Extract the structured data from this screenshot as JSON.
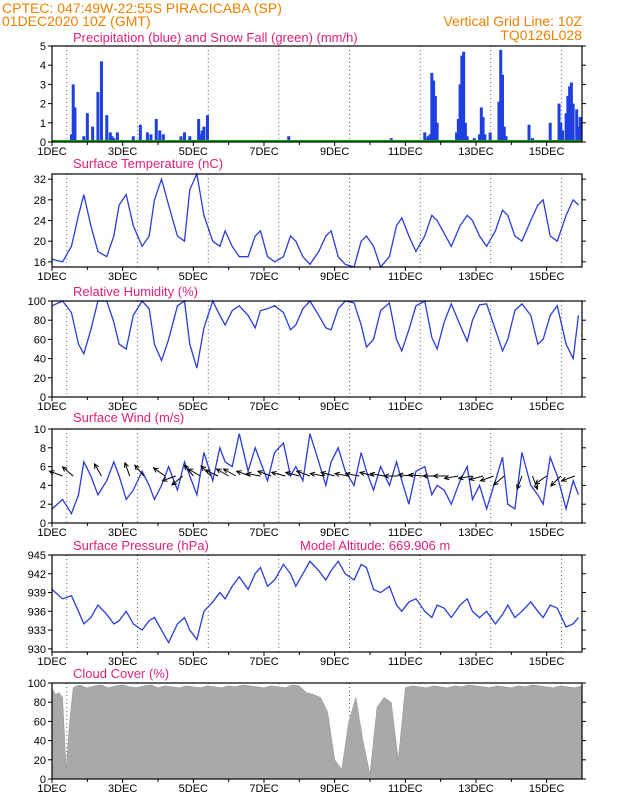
{
  "header": {
    "line1": "CPTEC:   047:49W-22:55S   PIRACICABA (SP)",
    "line2": "01DEC2020 10Z (GMT)",
    "grid_note": "Vertical Grid Line: 10Z",
    "code": "TQ0126L028"
  },
  "colors": {
    "header": "#f08000",
    "title": "#e0207a",
    "precip": "#1f3fe0",
    "snow": "#00a000",
    "line": "#2a3cd8",
    "cloud": "#a9a9a9"
  },
  "x_axis": {
    "labels": [
      "1DEC",
      "3DEC",
      "5DEC",
      "7DEC",
      "9DEC",
      "11DEC",
      "13DEC",
      "15DEC"
    ],
    "label_days": [
      0,
      2,
      4,
      6,
      8,
      10,
      12,
      14
    ],
    "xlim_days": [
      0,
      15
    ]
  },
  "chart_data": [
    {
      "type": "bar",
      "title": "Precipitation (blue) and Snow Fall (green) (mm/h)",
      "ylim": [
        0,
        5
      ],
      "yticks": [
        0,
        1,
        2,
        3,
        4,
        5
      ],
      "series": [
        {
          "name": "Precipitation",
          "x": [
            0.55,
            0.6,
            0.65,
            0.9,
            1.0,
            1.15,
            1.3,
            1.4,
            1.55,
            1.65,
            1.7,
            1.75,
            1.85,
            2.3,
            2.5,
            2.7,
            2.8,
            2.95,
            3.05,
            3.15,
            3.65,
            3.75,
            3.9,
            4.15,
            4.2,
            4.25,
            4.3,
            4.4,
            6.7,
            7.5,
            7.55,
            9.6,
            9.7,
            10.55,
            10.6,
            10.65,
            10.7,
            10.75,
            10.8,
            10.85,
            10.9,
            11.45,
            11.5,
            11.55,
            11.6,
            11.65,
            11.7,
            11.75,
            11.95,
            12.1,
            12.15,
            12.2,
            12.25,
            12.4,
            12.65,
            12.7,
            12.75,
            12.8,
            12.85,
            13.5,
            13.6,
            14.1,
            14.35,
            14.4,
            14.45,
            14.55,
            14.6,
            14.65,
            14.7,
            14.75,
            14.85,
            14.9,
            14.95
          ],
          "values": [
            0.4,
            3.0,
            1.8,
            0.3,
            1.5,
            0.8,
            2.6,
            4.2,
            1.4,
            0.5,
            0.3,
            0.2,
            0.5,
            0.3,
            0.9,
            0.5,
            0.4,
            1.2,
            0.6,
            0.4,
            0.3,
            0.5,
            0.3,
            1.2,
            0.4,
            0.6,
            0.8,
            1.4,
            0.3,
            0.1,
            0.1,
            0.2,
            0.1,
            0.5,
            0.2,
            0.3,
            0.4,
            3.6,
            3.2,
            2.4,
            1.0,
            0.5,
            1.2,
            3.0,
            4.5,
            4.7,
            1.0,
            0.3,
            0.2,
            0.4,
            1.8,
            1.3,
            0.4,
            0.5,
            2.1,
            4.8,
            3.5,
            0.8,
            0.3,
            0.9,
            0.2,
            1.0,
            2.0,
            1.0,
            0.6,
            1.5,
            2.4,
            2.9,
            3.1,
            2.0,
            1.7,
            0.8,
            1.3
          ]
        },
        {
          "name": "Snow Fall",
          "x": [
            0,
            15
          ],
          "values": [
            0,
            0
          ]
        }
      ]
    },
    {
      "type": "line",
      "title": "Surface Temperature (nC)",
      "ylim": [
        15,
        33
      ],
      "yticks": [
        16,
        20,
        24,
        28,
        32
      ],
      "series": [
        {
          "name": "Temperature",
          "x": [
            0,
            0.3,
            0.55,
            0.75,
            0.9,
            1.1,
            1.3,
            1.55,
            1.75,
            1.9,
            2.1,
            2.3,
            2.55,
            2.75,
            2.9,
            3.1,
            3.3,
            3.55,
            3.75,
            3.9,
            4.1,
            4.3,
            4.55,
            4.75,
            4.9,
            5.1,
            5.3,
            5.55,
            5.75,
            5.9,
            6.1,
            6.3,
            6.55,
            6.75,
            6.9,
            7.1,
            7.3,
            7.55,
            7.75,
            7.9,
            8.1,
            8.3,
            8.55,
            8.75,
            8.9,
            9.1,
            9.3,
            9.55,
            9.75,
            9.9,
            10.1,
            10.3,
            10.55,
            10.75,
            10.9,
            11.1,
            11.3,
            11.55,
            11.75,
            11.9,
            12.1,
            12.3,
            12.55,
            12.75,
            12.9,
            13.1,
            13.3,
            13.55,
            13.75,
            13.9,
            14.1,
            14.3,
            14.55,
            14.75,
            14.9
          ],
          "values": [
            16.5,
            16,
            19,
            25,
            29,
            23,
            18,
            17,
            21,
            27,
            29,
            23,
            19,
            21,
            28,
            32,
            27,
            21,
            20,
            30,
            33,
            25,
            20,
            19,
            22,
            19,
            17,
            17,
            21,
            22,
            17,
            16,
            17,
            21,
            20,
            17,
            15.5,
            18,
            21,
            22,
            17,
            15.5,
            15,
            20,
            21,
            19,
            15,
            17,
            23,
            24.5,
            21,
            18,
            21,
            25,
            24,
            21.5,
            19,
            23,
            25,
            24,
            21,
            19,
            22,
            26,
            25,
            21,
            20,
            24,
            27,
            28,
            21,
            20,
            25,
            28,
            27
          ]
        }
      ]
    },
    {
      "type": "line",
      "title": "Relative Humidity (%)",
      "ylim": [
        0,
        100
      ],
      "yticks": [
        0,
        20,
        40,
        60,
        80,
        100
      ],
      "series": [
        {
          "name": "Humidity",
          "x": [
            0,
            0.3,
            0.55,
            0.75,
            0.9,
            1.1,
            1.3,
            1.55,
            1.75,
            1.9,
            2.1,
            2.3,
            2.55,
            2.75,
            2.9,
            3.1,
            3.3,
            3.55,
            3.75,
            3.9,
            4.1,
            4.3,
            4.55,
            4.75,
            4.9,
            5.1,
            5.3,
            5.55,
            5.75,
            5.9,
            6.1,
            6.3,
            6.55,
            6.75,
            6.9,
            7.1,
            7.3,
            7.55,
            7.75,
            7.9,
            8.1,
            8.3,
            8.55,
            8.75,
            8.9,
            9.1,
            9.3,
            9.55,
            9.75,
            9.9,
            10.1,
            10.3,
            10.55,
            10.75,
            10.9,
            11.1,
            11.3,
            11.55,
            11.75,
            11.9,
            12.1,
            12.3,
            12.55,
            12.75,
            12.9,
            13.1,
            13.3,
            13.55,
            13.75,
            13.9,
            14.1,
            14.3,
            14.55,
            14.75,
            14.9
          ],
          "values": [
            95,
            100,
            88,
            55,
            45,
            70,
            100,
            100,
            78,
            55,
            50,
            85,
            100,
            92,
            55,
            38,
            60,
            95,
            100,
            55,
            30,
            72,
            100,
            85,
            75,
            90,
            95,
            85,
            72,
            90,
            92,
            95,
            88,
            70,
            75,
            92,
            100,
            85,
            72,
            70,
            92,
            100,
            98,
            75,
            52,
            60,
            90,
            98,
            60,
            48,
            70,
            95,
            100,
            62,
            50,
            78,
            97,
            75,
            58,
            80,
            96,
            97,
            70,
            48,
            60,
            90,
            97,
            85,
            55,
            60,
            85,
            95,
            55,
            40,
            85
          ]
        }
      ]
    },
    {
      "type": "line",
      "title": "Surface Wind (m/s)",
      "ylim": [
        0,
        10
      ],
      "yticks": [
        0,
        2,
        4,
        6,
        8,
        10
      ],
      "series": [
        {
          "name": "Wind speed",
          "x": [
            0,
            0.3,
            0.55,
            0.75,
            0.9,
            1.1,
            1.3,
            1.55,
            1.75,
            1.9,
            2.1,
            2.3,
            2.55,
            2.75,
            2.9,
            3.1,
            3.3,
            3.55,
            3.75,
            3.9,
            4.1,
            4.3,
            4.55,
            4.75,
            4.9,
            5.1,
            5.3,
            5.55,
            5.75,
            5.9,
            6.1,
            6.3,
            6.55,
            6.75,
            6.9,
            7.1,
            7.3,
            7.55,
            7.75,
            7.9,
            8.1,
            8.3,
            8.55,
            8.75,
            8.9,
            9.1,
            9.3,
            9.55,
            9.75,
            9.9,
            10.1,
            10.3,
            10.55,
            10.75,
            10.9,
            11.1,
            11.3,
            11.55,
            11.75,
            11.9,
            12.1,
            12.3,
            12.55,
            12.75,
            12.9,
            13.1,
            13.3,
            13.55,
            13.75,
            13.9,
            14.1,
            14.3,
            14.55,
            14.75,
            14.9
          ],
          "values": [
            1.5,
            2.5,
            1.0,
            3.0,
            6.5,
            5.0,
            3.0,
            4.5,
            6.5,
            5.0,
            2.5,
            3.5,
            5.5,
            4.0,
            2.5,
            4.0,
            6.0,
            3.5,
            6.5,
            5.0,
            3.0,
            7.5,
            4.5,
            8.0,
            6.5,
            6.0,
            9.5,
            5.5,
            8.0,
            6.5,
            4.5,
            7.5,
            8.5,
            5.0,
            6.0,
            4.5,
            9.5,
            6.5,
            4.0,
            6.5,
            8.0,
            5.5,
            4.0,
            7.5,
            5.5,
            3.5,
            6.0,
            4.0,
            6.5,
            4.5,
            2.0,
            5.5,
            6.0,
            3.0,
            4.0,
            3.5,
            2.0,
            4.5,
            6.0,
            2.5,
            4.0,
            1.5,
            4.5,
            7.0,
            2.0,
            1.5,
            7.5,
            4.0,
            3.0,
            2.0,
            7.0,
            5.0,
            1.5,
            4.5,
            3.0
          ]
        }
      ],
      "arrows": {
        "x": [
          0.3,
          0.6,
          1.4,
          2.2,
          2.6,
          3.2,
          3.5,
          3.7,
          4.0,
          4.2,
          4.5,
          4.7,
          5.0,
          5.2,
          5.6,
          5.9,
          6.2,
          6.6,
          7.0,
          7.3,
          7.7,
          8.0,
          8.4,
          8.7,
          9.1,
          9.4,
          9.8,
          10.2,
          10.5,
          10.9,
          11.2,
          11.5,
          11.9,
          12.2,
          12.5,
          12.8,
          13.3,
          13.6,
          14.0,
          14.4,
          14.8
        ],
        "angle_deg": [
          160,
          140,
          120,
          110,
          130,
          145,
          200,
          220,
          130,
          150,
          135,
          155,
          150,
          150,
          160,
          170,
          160,
          165,
          165,
          160,
          170,
          165,
          170,
          170,
          165,
          170,
          180,
          175,
          175,
          180,
          180,
          190,
          190,
          195,
          200,
          220,
          250,
          290,
          215,
          225,
          200
        ]
      }
    },
    {
      "type": "line",
      "title": "Surface Pressure (hPa)",
      "annotation": "Model Altitude: 669.906 m",
      "ylim": [
        929.5,
        945
      ],
      "yticks": [
        930,
        933,
        936,
        939,
        942,
        945
      ],
      "series": [
        {
          "name": "Pressure",
          "x": [
            0,
            0.3,
            0.55,
            0.75,
            0.9,
            1.1,
            1.3,
            1.55,
            1.75,
            1.9,
            2.1,
            2.3,
            2.55,
            2.75,
            2.9,
            3.1,
            3.3,
            3.55,
            3.75,
            3.9,
            4.1,
            4.3,
            4.55,
            4.75,
            4.9,
            5.1,
            5.3,
            5.55,
            5.75,
            5.9,
            6.1,
            6.3,
            6.55,
            6.75,
            6.9,
            7.1,
            7.3,
            7.55,
            7.75,
            7.9,
            8.1,
            8.3,
            8.55,
            8.75,
            8.9,
            9.1,
            9.3,
            9.55,
            9.75,
            9.9,
            10.1,
            10.3,
            10.55,
            10.75,
            10.9,
            11.1,
            11.3,
            11.55,
            11.75,
            11.9,
            12.1,
            12.3,
            12.55,
            12.75,
            12.9,
            13.1,
            13.3,
            13.55,
            13.75,
            13.9,
            14.1,
            14.3,
            14.55,
            14.75,
            14.9
          ],
          "values": [
            939.5,
            938,
            938.5,
            936,
            934,
            935,
            937,
            935.5,
            934,
            934.5,
            936,
            934,
            933,
            934.5,
            935,
            933,
            931,
            934,
            935,
            933,
            931.5,
            936,
            937.5,
            939,
            938,
            940,
            941.5,
            939.5,
            942,
            943,
            940,
            941,
            943.5,
            942,
            940,
            942,
            944,
            942.5,
            941,
            942.5,
            944,
            942,
            941,
            943.5,
            943,
            939.5,
            939,
            940,
            937,
            936,
            937.5,
            938,
            936,
            935,
            937,
            936.5,
            935,
            937,
            938,
            936,
            935,
            936,
            934,
            935.5,
            937,
            935,
            936,
            937.5,
            936,
            935,
            937,
            936.5,
            933.5,
            934,
            935
          ]
        }
      ]
    },
    {
      "type": "area",
      "title": "Cloud Cover (%)",
      "ylim": [
        0,
        100
      ],
      "yticks": [
        0,
        20,
        40,
        60,
        80,
        100
      ],
      "series": [
        {
          "name": "Cloud cover",
          "x": [
            0,
            0.1,
            0.2,
            0.3,
            0.4,
            0.5,
            0.6,
            0.7,
            0.8,
            0.9,
            1.0,
            1.2,
            1.4,
            1.6,
            1.8,
            2.0,
            2.2,
            2.4,
            2.6,
            2.8,
            3.0,
            3.2,
            3.4,
            3.6,
            3.8,
            4.0,
            4.2,
            4.4,
            4.6,
            4.8,
            5.0,
            5.2,
            5.4,
            5.6,
            5.8,
            6.0,
            6.2,
            6.4,
            6.6,
            6.8,
            7.0,
            7.2,
            7.4,
            7.6,
            7.8,
            8.0,
            8.2,
            8.4,
            8.6,
            8.8,
            9.0,
            9.2,
            9.4,
            9.6,
            9.8,
            10.0,
            10.2,
            10.4,
            10.6,
            10.8,
            11.0,
            11.2,
            11.4,
            11.6,
            11.8,
            12.0,
            12.2,
            12.4,
            12.6,
            12.8,
            13.0,
            13.2,
            13.4,
            13.6,
            13.8,
            14.0,
            14.2,
            14.4,
            14.6,
            14.8,
            15.0
          ],
          "values": [
            95,
            88,
            90,
            85,
            10,
            60,
            95,
            97,
            98,
            96,
            95,
            97,
            98,
            95,
            97,
            98,
            96,
            95,
            97,
            98,
            95,
            97,
            96,
            95,
            97,
            96,
            95,
            97,
            96,
            95,
            97,
            96,
            98,
            97,
            96,
            95,
            97,
            96,
            95,
            98,
            97,
            90,
            88,
            85,
            70,
            20,
            10,
            60,
            85,
            40,
            5,
            75,
            85,
            80,
            20,
            95,
            97,
            96,
            95,
            97,
            96,
            95,
            97,
            96,
            98,
            97,
            96,
            95,
            97,
            96,
            95,
            97,
            96,
            98,
            97,
            96,
            95,
            97,
            96,
            95,
            97
          ]
        }
      ]
    }
  ]
}
